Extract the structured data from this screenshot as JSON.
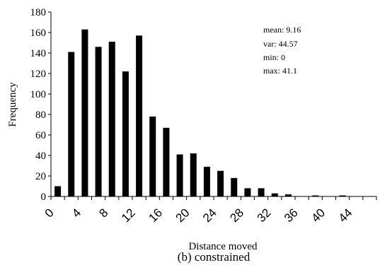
{
  "chart_data": {
    "type": "bar",
    "x": [
      1,
      3,
      5,
      7,
      9,
      11,
      13,
      15,
      17,
      19,
      21,
      23,
      25,
      27,
      29,
      31,
      33,
      35,
      37,
      39,
      41,
      43,
      45
    ],
    "values": [
      10,
      141,
      163,
      146,
      151,
      122,
      157,
      78,
      67,
      41,
      42,
      29,
      25,
      18,
      8,
      8,
      3,
      2,
      0,
      1,
      0,
      1,
      0
    ],
    "xlabel": "Distance moved",
    "ylabel": "Frequency",
    "xlim": [
      0,
      48
    ],
    "ylim": [
      0,
      180
    ],
    "xticks": [
      "0",
      "4",
      "8",
      "12",
      "16",
      "20",
      "24",
      "28",
      "32",
      "36",
      "40",
      "44"
    ],
    "yticks": [
      "0",
      "20",
      "40",
      "60",
      "80",
      "100",
      "120",
      "140",
      "160",
      "180"
    ],
    "annotations": [
      "mean: 9.16",
      "var: 44.57",
      "min: 0",
      "max: 41.1"
    ],
    "caption": "(b) constrained",
    "grid": false,
    "bar_color": "#000000"
  }
}
